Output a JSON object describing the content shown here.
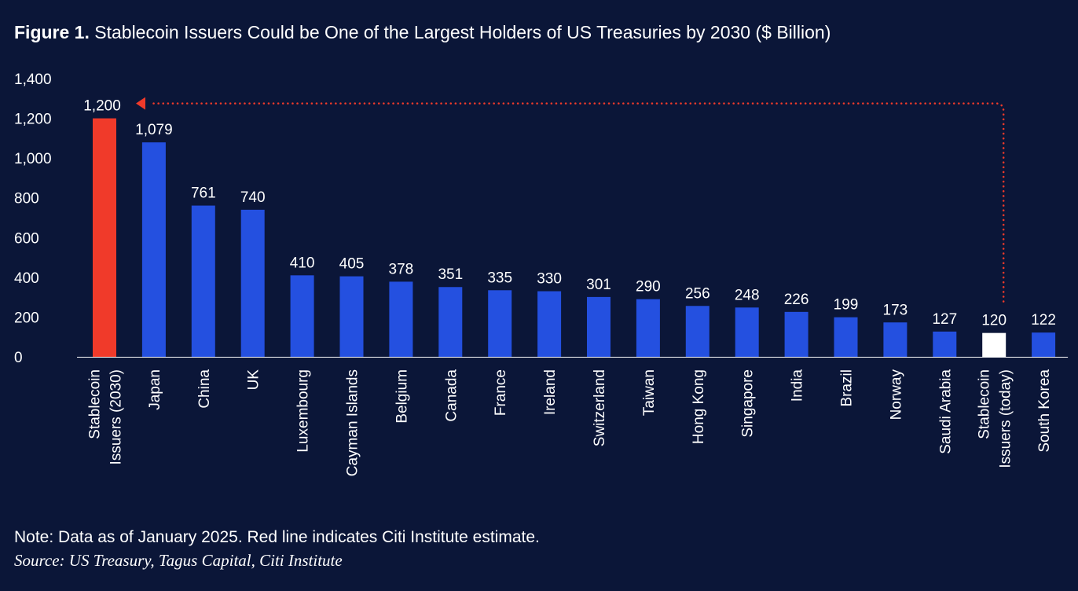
{
  "figure": {
    "label": "Figure 1.",
    "title": "Stablecoin Issuers Could be One of the Largest Holders of US Treasuries by 2030 ($ Billion)"
  },
  "footer": {
    "note": "Note: Data as of January 2025. Red line indicates Citi Institute estimate.",
    "source": "Source: US Treasury, Tagus Capital, Citi Institute"
  },
  "colors": {
    "background": "#0b1638",
    "bar_default": "#2450e0",
    "bar_estimate": "#f03a2a",
    "bar_today": "#ffffff",
    "arrow": "#f03a2a"
  },
  "chart_data": {
    "type": "bar",
    "title": "Stablecoin Issuers Could be One of the Largest Holders of US Treasuries by 2030 ($ Billion)",
    "xlabel": "",
    "ylabel": "",
    "ylim": [
      0,
      1400
    ],
    "yticks": [
      0,
      200,
      400,
      600,
      800,
      1000,
      1200,
      1400
    ],
    "ytick_labels": [
      "0",
      "200",
      "400",
      "600",
      "800",
      "1,000",
      "1,200",
      "1,400"
    ],
    "grid": false,
    "categories": [
      [
        "Stablecoin",
        "Issuers (2030)"
      ],
      [
        "Japan"
      ],
      [
        "China"
      ],
      [
        "UK"
      ],
      [
        "Luxembourg"
      ],
      [
        "Cayman Islands"
      ],
      [
        "Belgium"
      ],
      [
        "Canada"
      ],
      [
        "France"
      ],
      [
        "Ireland"
      ],
      [
        "Switzerland"
      ],
      [
        "Taiwan"
      ],
      [
        "Hong Kong"
      ],
      [
        "Singapore"
      ],
      [
        "India"
      ],
      [
        "Brazil"
      ],
      [
        "Norway"
      ],
      [
        "Saudi Arabia"
      ],
      [
        "Stablecoin",
        "Issuers (today)"
      ],
      [
        "South Korea"
      ]
    ],
    "values": [
      1200,
      1079,
      761,
      740,
      410,
      405,
      378,
      351,
      335,
      330,
      301,
      290,
      256,
      248,
      226,
      199,
      173,
      127,
      120,
      122
    ],
    "value_labels": [
      "1,200",
      "1,079",
      "761",
      "740",
      "410",
      "405",
      "378",
      "351",
      "335",
      "330",
      "301",
      "290",
      "256",
      "248",
      "226",
      "199",
      "173",
      "127",
      "120",
      "122"
    ],
    "highlight": {
      "estimate_index": 0,
      "today_index": 18
    },
    "annotation": "dotted red arrow from Stablecoin Issuers (today) up and over to Stablecoin Issuers (2030)"
  }
}
